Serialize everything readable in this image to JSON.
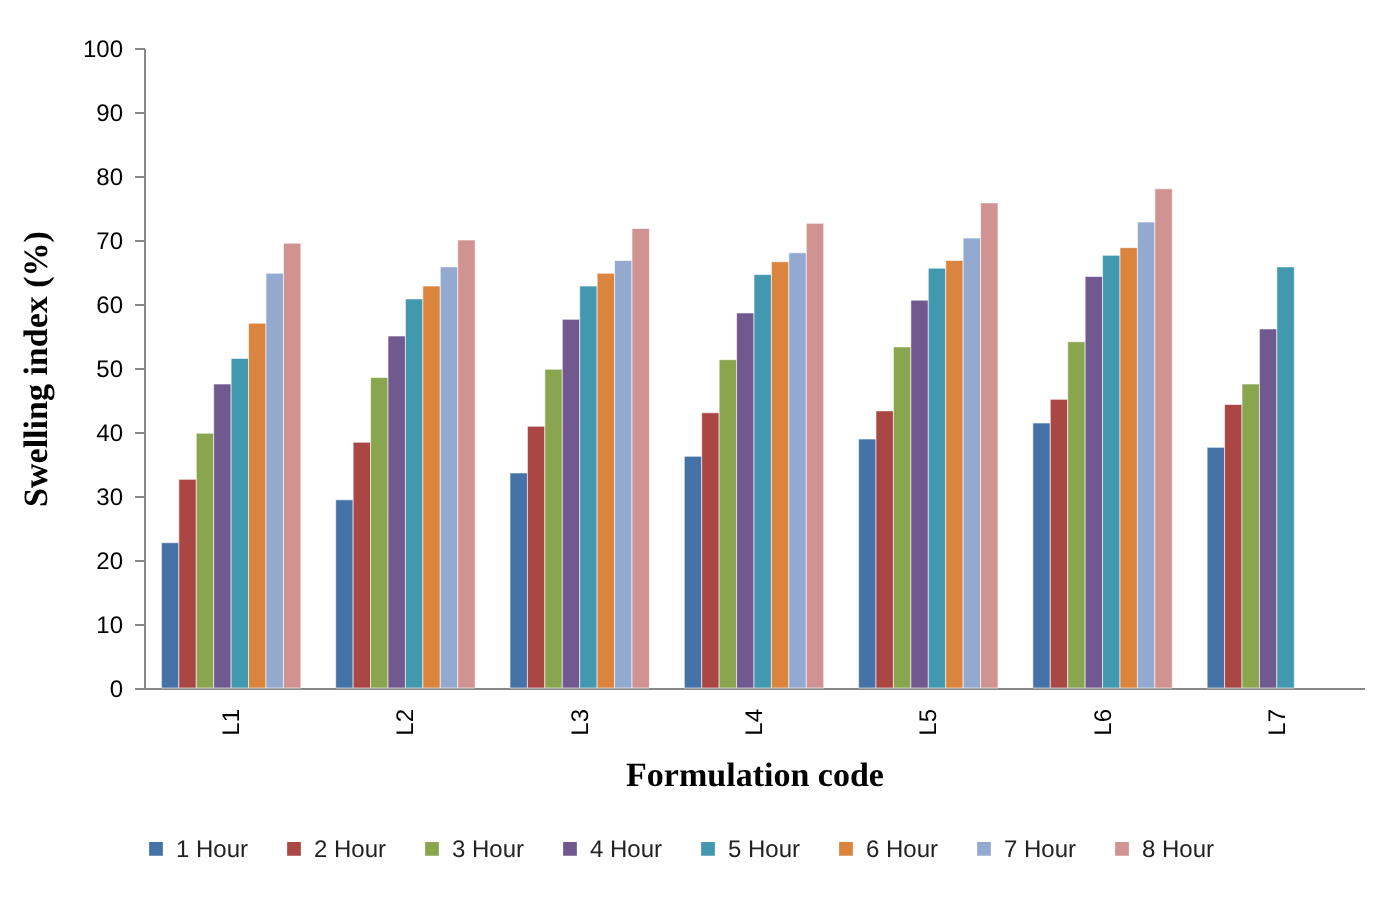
{
  "chart_data": {
    "type": "bar",
    "xlabel": "Formulation code",
    "ylabel": "Swelling index (%)",
    "categories": [
      "L1",
      "L2",
      "L3",
      "L4",
      "L5",
      "L6",
      "L7"
    ],
    "series": [
      {
        "name": "1 Hour",
        "color": "#4572a7",
        "values": [
          22.7,
          29.4,
          33.6,
          36.2,
          38.9,
          41.4,
          37.6
        ]
      },
      {
        "name": "2 Hour",
        "color": "#aa4643",
        "values": [
          32.6,
          38.4,
          40.9,
          43.0,
          43.3,
          45.1,
          44.3
        ]
      },
      {
        "name": "3 Hour",
        "color": "#89a54e",
        "values": [
          39.8,
          48.5,
          49.8,
          51.3,
          53.3,
          54.1,
          47.5
        ]
      },
      {
        "name": "4 Hour",
        "color": "#71588f",
        "values": [
          47.5,
          55.0,
          57.6,
          58.6,
          60.6,
          64.3,
          56.1
        ]
      },
      {
        "name": "5 Hour",
        "color": "#4198af",
        "values": [
          51.5,
          60.8,
          62.8,
          64.6,
          65.6,
          67.6,
          65.8
        ]
      },
      {
        "name": "6 Hour",
        "color": "#db843d",
        "values": [
          57.0,
          62.8,
          64.8,
          66.6,
          66.8,
          68.8,
          null
        ]
      },
      {
        "name": "7 Hour",
        "color": "#93a9cf",
        "values": [
          64.8,
          65.8,
          66.8,
          68.0,
          70.3,
          72.8,
          null
        ]
      },
      {
        "name": "8 Hour",
        "color": "#d19392",
        "values": [
          69.5,
          70.0,
          71.8,
          72.6,
          75.8,
          78.0,
          null
        ]
      }
    ],
    "ylim": [
      0,
      100
    ],
    "yticks": [
      0,
      10,
      20,
      30,
      40,
      50,
      60,
      70,
      80,
      90,
      100
    ],
    "grid": false,
    "legend": "bottom"
  }
}
